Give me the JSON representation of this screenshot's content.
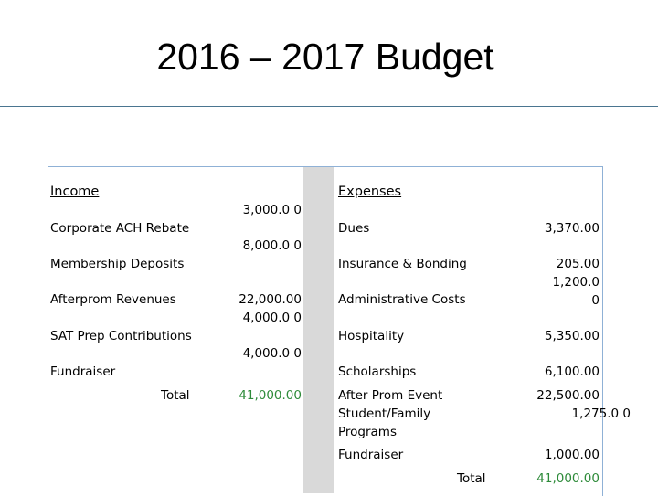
{
  "title": "2016 – 2017 Budget",
  "income": {
    "heading": "Income",
    "items": [
      {
        "label": "Corporate ACH Rebate",
        "amount": "3,000.0 0"
      },
      {
        "label": "Membership Deposits",
        "amount": "8,000.0 0"
      },
      {
        "label": "Afterprom Revenues",
        "amount": "22,000.00"
      },
      {
        "label": "SAT Prep Contributions",
        "amount": "4,000.0 0"
      },
      {
        "label": "Fundraiser",
        "amount": "4,000.0 0"
      }
    ],
    "total_label": "Total",
    "total_amount": "41,000.00"
  },
  "expenses": {
    "heading": "Expenses",
    "items": [
      {
        "label": "Dues",
        "amount": "3,370.00"
      },
      {
        "label": "Insurance & Bonding",
        "amount": "205.00"
      },
      {
        "label": "Administrative Costs",
        "amount": "1,200.0 0"
      },
      {
        "label": "Hospitality",
        "amount": "5,350.00"
      },
      {
        "label": "Scholarships",
        "amount": "6,100.00"
      },
      {
        "label": "After Prom Event",
        "amount": "22,500.00"
      },
      {
        "label": "Student/Family Programs",
        "amount": "1,275.0 0"
      },
      {
        "label": "Fundraiser",
        "amount": "1,000.00"
      }
    ],
    "total_label": "Total",
    "total_amount": "41,000.00"
  },
  "colors": {
    "total_green": "#2e8b3a",
    "shaded_column": "#d9d9d9",
    "frame": "#8fb1d6",
    "rule": "#4a7590"
  }
}
